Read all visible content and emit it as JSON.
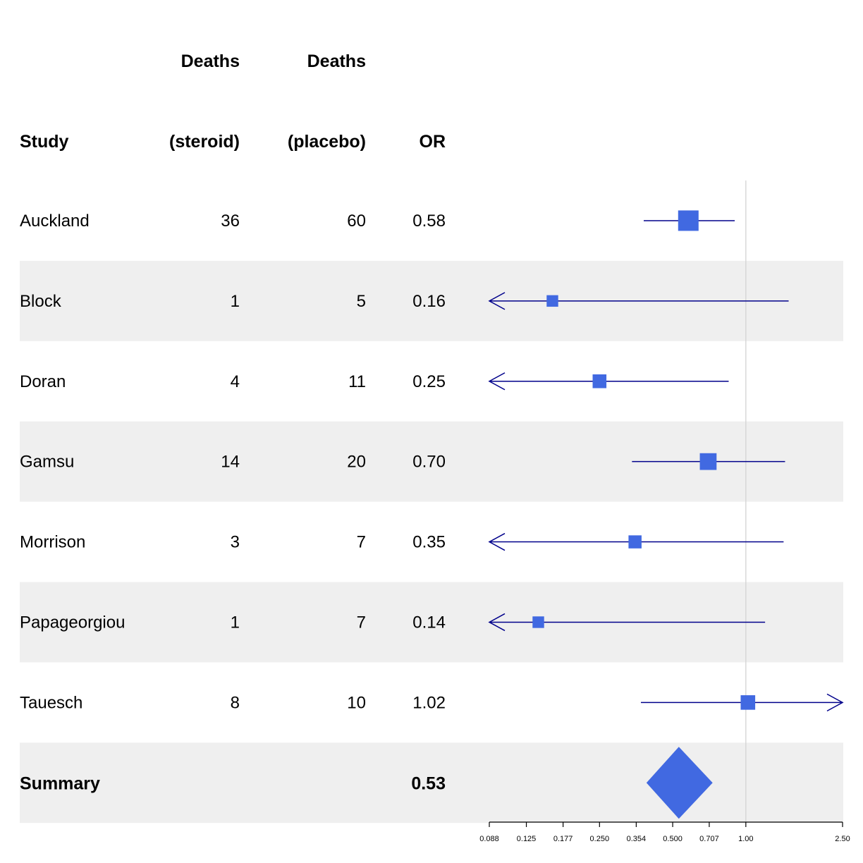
{
  "table": {
    "headers": [
      {
        "line1": "",
        "line2": "Study"
      },
      {
        "line1": "Deaths",
        "line2": "(steroid)"
      },
      {
        "line1": "Deaths",
        "line2": "(placebo)"
      },
      {
        "line1": "",
        "line2": "OR"
      }
    ]
  },
  "chart_data": {
    "type": "forest",
    "xscale": "log",
    "xlim": [
      0.088,
      2.5
    ],
    "xticks": [
      0.088,
      0.125,
      0.177,
      0.25,
      0.354,
      0.5,
      0.707,
      1.0,
      2.5
    ],
    "xtick_labels": [
      "0.088",
      "0.125",
      "0.177",
      "0.250",
      "0.354",
      "0.500",
      "0.707",
      "1.00",
      "2.50"
    ],
    "reference_line": 1.0,
    "studies": [
      {
        "name": "Auckland",
        "steroid": "36",
        "placebo": "60",
        "or_label": "0.58",
        "or": 0.58,
        "lower": 0.38,
        "upper": 0.9,
        "weight": 1.0
      },
      {
        "name": "Block",
        "steroid": "1",
        "placebo": "5",
        "or_label": "0.16",
        "or": 0.16,
        "lower": 0.02,
        "upper": 1.5,
        "weight": 0.4
      },
      {
        "name": "Doran",
        "steroid": "4",
        "placebo": "11",
        "or_label": "0.25",
        "or": 0.25,
        "lower": 0.06,
        "upper": 0.85,
        "weight": 0.55
      },
      {
        "name": "Gamsu",
        "steroid": "14",
        "placebo": "20",
        "or_label": "0.70",
        "or": 0.7,
        "lower": 0.34,
        "upper": 1.45,
        "weight": 0.75
      },
      {
        "name": "Morrison",
        "steroid": "3",
        "placebo": "7",
        "or_label": "0.35",
        "or": 0.35,
        "lower": 0.08,
        "upper": 1.43,
        "weight": 0.5
      },
      {
        "name": "Papageorgiou",
        "steroid": "1",
        "placebo": "7",
        "or_label": "0.14",
        "or": 0.14,
        "lower": 0.02,
        "upper": 1.2,
        "weight": 0.4
      },
      {
        "name": "Tauesch",
        "steroid": "8",
        "placebo": "10",
        "or_label": "1.02",
        "or": 1.02,
        "lower": 0.37,
        "upper": 3.0,
        "weight": 0.6
      }
    ],
    "summary": {
      "name": "Summary",
      "or_label": "0.53",
      "or": 0.53,
      "lower": 0.39,
      "upper": 0.73
    },
    "colors": {
      "box": "#4169e1",
      "ci_line": "#00008b",
      "band": "#efefef",
      "ref_line": "#d3d3d3",
      "axis": "#000000"
    }
  }
}
